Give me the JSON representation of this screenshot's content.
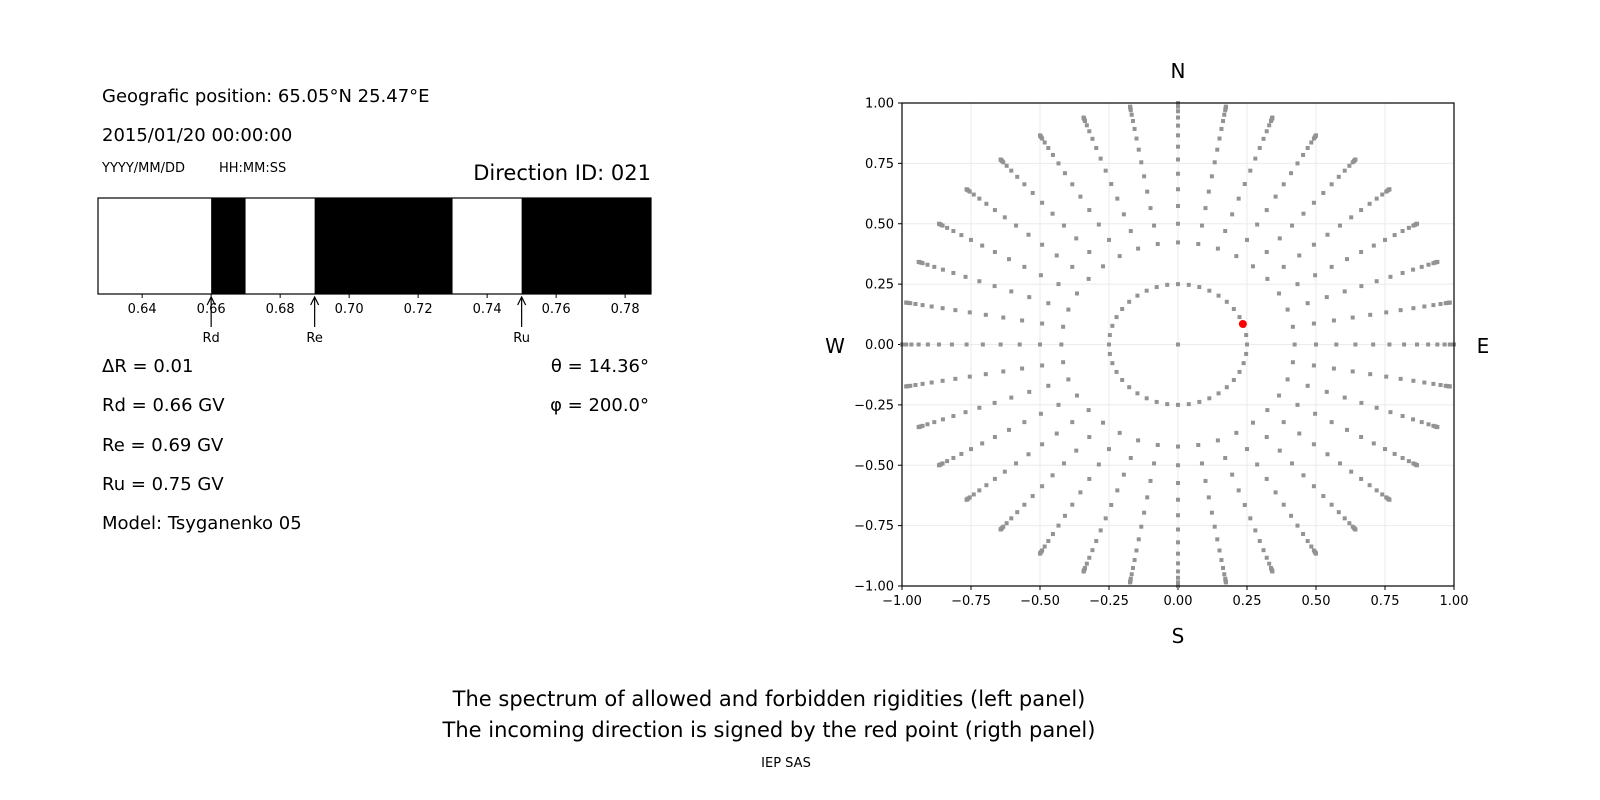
{
  "left_panel": {
    "position_text": "Geografic position: 65.05°N 25.47°E",
    "datetime": "2015/01/20 00:00:00",
    "date_format": "YYYY/MM/DD",
    "time_format": "HH:MM:SS",
    "direction_id": "Direction ID: 021",
    "delta_r": "ΔR = 0.01",
    "rd": "Rd = 0.66 GV",
    "re": "Re = 0.69 GV",
    "ru": "Ru = 0.75 GV",
    "model": "Model: Tsyganenko 05",
    "theta": "θ = 14.36°",
    "phi": "φ = 200.0°"
  },
  "footer": {
    "line1": "The spectrum of allowed and forbidden rigidities (left panel)",
    "line2": "The incoming direction is signed by the red point (rigth panel)",
    "credit": "IEP SAS"
  },
  "chart_data": [
    {
      "type": "bar",
      "subtype": "rigidity-spectrum",
      "xlim": [
        0.6272,
        0.7875
      ],
      "xticks": [
        "0.64",
        "0.66",
        "0.68",
        "0.70",
        "0.72",
        "0.74",
        "0.76",
        "0.78"
      ],
      "xtick_values": [
        0.64,
        0.66,
        0.68,
        0.7,
        0.72,
        0.74,
        0.76,
        0.78
      ],
      "segments": [
        {
          "from": 0.6272,
          "to": 0.66,
          "state": "allowed",
          "color": "#ffffff"
        },
        {
          "from": 0.66,
          "to": 0.67,
          "state": "forbidden",
          "color": "#000000"
        },
        {
          "from": 0.67,
          "to": 0.69,
          "state": "allowed",
          "color": "#ffffff"
        },
        {
          "from": 0.69,
          "to": 0.73,
          "state": "forbidden",
          "color": "#000000"
        },
        {
          "from": 0.73,
          "to": 0.75,
          "state": "allowed",
          "color": "#ffffff"
        },
        {
          "from": 0.75,
          "to": 0.7875,
          "state": "forbidden",
          "color": "#000000"
        }
      ],
      "annotations": [
        {
          "label": "Rd",
          "value": 0.66
        },
        {
          "label": "Re",
          "value": 0.69
        },
        {
          "label": "Ru",
          "value": 0.75
        }
      ]
    },
    {
      "type": "scatter",
      "xlim": [
        -1,
        1
      ],
      "ylim": [
        -1,
        1
      ],
      "grid": true,
      "ticks": [
        "−1.00",
        "−0.75",
        "−0.50",
        "−0.25",
        "0.00",
        "0.25",
        "0.50",
        "0.75",
        "1.00"
      ],
      "tick_values": [
        -1,
        -0.75,
        -0.5,
        -0.25,
        0,
        0.25,
        0.5,
        0.75,
        1
      ],
      "compass": {
        "north": "N",
        "south": "S",
        "east": "E",
        "west": "W"
      },
      "grid_points": {
        "color": "#939393",
        "center": [
          0,
          0
        ],
        "inner_ring_zenith_deg": 14.48,
        "inner_ring_count": 40,
        "spoke_azimuth_step_deg": 10,
        "spoke_zenith_deg": [
          25,
          30,
          35,
          40,
          45,
          50,
          55,
          60,
          65,
          70,
          75,
          80,
          82.5,
          85,
          87.5,
          90
        ]
      },
      "highlight_point": {
        "x": 0.235,
        "y": 0.085,
        "color": "#ff0000"
      }
    }
  ]
}
